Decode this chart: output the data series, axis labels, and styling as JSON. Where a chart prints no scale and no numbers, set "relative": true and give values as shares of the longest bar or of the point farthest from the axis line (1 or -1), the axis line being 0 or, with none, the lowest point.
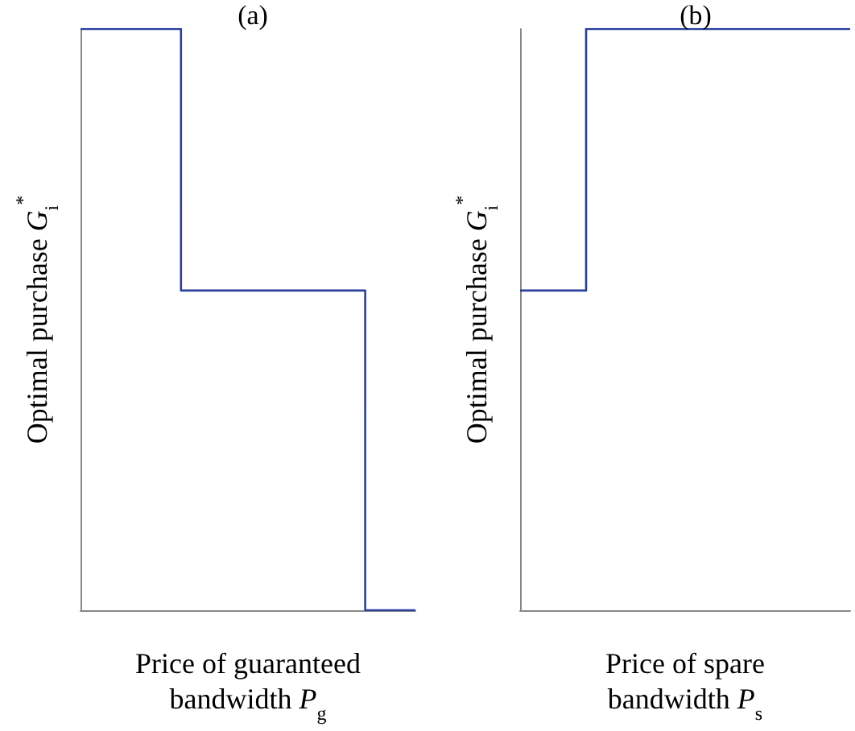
{
  "chart_data": [
    {
      "type": "step",
      "title": "(a)",
      "xlabel": "Price of guaranteed\nbandwidth P$_{g}$",
      "ylabel": "Optimal purchase G$_{i}$$^{*}$",
      "relative": true,
      "grid": false,
      "marker": "none",
      "line_style": "solid",
      "categories": [
        null,
        null,
        null,
        null,
        null,
        null,
        null,
        null,
        null,
        null,
        null,
        null,
        null,
        null,
        null,
        null,
        null,
        null,
        null,
        null,
        null
      ],
      "series": [
        {
          "color": "#2a3f9f",
          "values": [
            1,
            1,
            1,
            1,
            1,
            1,
            0.55,
            0.55,
            0.55,
            0.55,
            0.55,
            0.55,
            0.55,
            0.55,
            0.55,
            0.55,
            0.55,
            0,
            0,
            0,
            0
          ]
        }
      ]
    },
    {
      "type": "step",
      "title": "(b)",
      "xlabel": "Price of spare\nbandwidth P$_{s}$",
      "ylabel": "Optimal purchase G$_{i}$$^{*}$",
      "relative": true,
      "grid": false,
      "marker": "none",
      "line_style": "solid",
      "categories": [
        null,
        null,
        null,
        null,
        null,
        null,
        null,
        null,
        null,
        null,
        null,
        null,
        null,
        null,
        null,
        null,
        null,
        null,
        null,
        null,
        null
      ],
      "series": [
        {
          "color": "#2a3f9f",
          "values": [
            0.55,
            0.55,
            0.55,
            0.55,
            1,
            1,
            1,
            1,
            1,
            1,
            1,
            1,
            1,
            1,
            1,
            1,
            1,
            1,
            1,
            1,
            1
          ]
        }
      ]
    }
  ]
}
